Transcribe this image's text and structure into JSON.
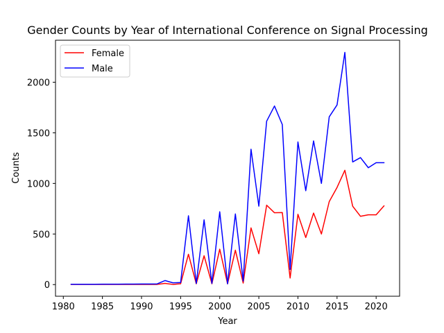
{
  "chart_data": {
    "type": "line",
    "title": "Gender Counts by Year of International Conference on Signal Processing",
    "xlabel": "Year",
    "ylabel": "Counts",
    "xlim": [
      1979.0,
      2023.0
    ],
    "ylim": [
      -115,
      2415
    ],
    "xticks": [
      1980,
      1985,
      1990,
      1995,
      2000,
      2005,
      2010,
      2015,
      2020
    ],
    "yticks": [
      0,
      500,
      1000,
      1500,
      2000
    ],
    "grid": false,
    "legend_position": "top-left",
    "x": [
      1981,
      1982,
      1983,
      1984,
      1985,
      1986,
      1987,
      1988,
      1989,
      1990,
      1991,
      1992,
      1993,
      1994,
      1995,
      1996,
      1997,
      1998,
      1999,
      2000,
      2001,
      2002,
      2003,
      2004,
      2005,
      2006,
      2007,
      2008,
      2009,
      2010,
      2011,
      2012,
      2013,
      2014,
      2015,
      2016,
      2017,
      2018,
      2019,
      2020,
      2021
    ],
    "series": [
      {
        "name": "Female",
        "color": "#ff0000",
        "values": [
          2,
          2,
          2,
          2,
          2,
          2,
          2,
          2,
          2,
          2,
          2,
          2,
          12,
          2,
          8,
          300,
          8,
          285,
          8,
          350,
          8,
          340,
          15,
          560,
          305,
          785,
          710,
          712,
          65,
          695,
          465,
          707,
          500,
          820,
          960,
          1130,
          775,
          675,
          690,
          690,
          778
        ]
      },
      {
        "name": "Male",
        "color": "#0000ff",
        "values": [
          3,
          3,
          3,
          3,
          4,
          4,
          4,
          5,
          5,
          6,
          6,
          7,
          40,
          18,
          20,
          680,
          12,
          640,
          12,
          720,
          8,
          698,
          35,
          1338,
          775,
          1615,
          1765,
          1582,
          150,
          1410,
          928,
          1420,
          1000,
          1658,
          1775,
          2295,
          1212,
          1255,
          1155,
          1205,
          1205
        ]
      }
    ]
  }
}
